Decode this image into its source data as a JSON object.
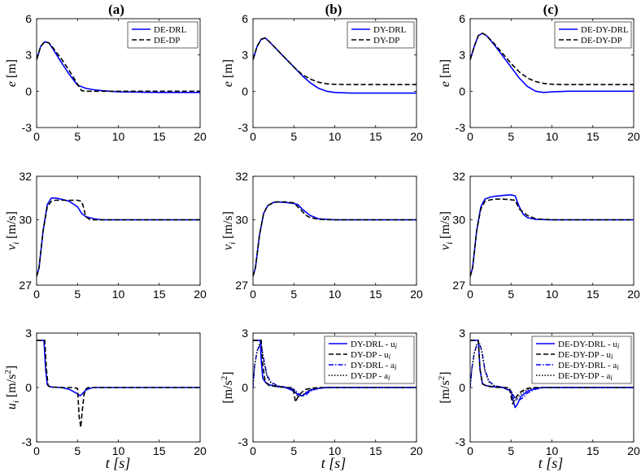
{
  "panel_titles": [
    "(a)",
    "(b)",
    "(c)"
  ],
  "x_label": "t [s]",
  "colors": {
    "drl": "#0000ff",
    "dp": "#000000"
  },
  "chart_data": [
    {
      "type": "line",
      "panel": "(a)",
      "row": "e",
      "ylabel": "e [m]",
      "xlim": [
        0,
        20
      ],
      "ylim": [
        -3,
        6
      ],
      "xticks": [
        0,
        5,
        10,
        15,
        20
      ],
      "yticks": [
        -3,
        0,
        3,
        6
      ],
      "legend": "top-right",
      "series": [
        {
          "name": "DE-DRL",
          "style": "drl",
          "x": [
            0,
            0.5,
            1,
            1.5,
            2,
            3,
            4,
            5,
            6,
            7,
            8,
            10,
            15,
            20
          ],
          "y": [
            2.6,
            3.7,
            4.1,
            4.0,
            3.5,
            2.4,
            1.4,
            0.5,
            0.25,
            0.12,
            0.05,
            -0.05,
            -0.1,
            -0.1
          ]
        },
        {
          "name": "DE-DP",
          "style": "dp",
          "x": [
            0,
            0.5,
            1,
            1.5,
            2,
            3,
            4,
            5,
            5.5,
            6,
            8,
            10,
            15,
            20
          ],
          "y": [
            2.6,
            3.7,
            4.1,
            4.0,
            3.6,
            2.7,
            1.7,
            0.6,
            0.05,
            0.0,
            0.0,
            0.0,
            0.0,
            0.0
          ]
        }
      ]
    },
    {
      "type": "line",
      "panel": "(b)",
      "row": "e",
      "ylabel": "e [m]",
      "xlim": [
        0,
        20
      ],
      "ylim": [
        -3,
        6
      ],
      "xticks": [
        0,
        5,
        10,
        15,
        20
      ],
      "yticks": [
        -3,
        0,
        3,
        6
      ],
      "legend": "top-right",
      "series": [
        {
          "name": "DY-DRL",
          "style": "drl",
          "x": [
            0,
            0.5,
            1,
            1.5,
            2,
            3,
            4,
            5,
            6,
            7,
            8,
            9,
            10,
            12,
            15,
            20
          ],
          "y": [
            2.6,
            3.7,
            4.3,
            4.4,
            4.1,
            3.4,
            2.7,
            2.0,
            1.3,
            0.7,
            0.25,
            0.0,
            -0.1,
            -0.15,
            -0.15,
            -0.15
          ]
        },
        {
          "name": "DY-DP",
          "style": "dp",
          "x": [
            0,
            0.5,
            1,
            1.5,
            2,
            3,
            4,
            5,
            6,
            7,
            8,
            9,
            10,
            12,
            15,
            20
          ],
          "y": [
            2.6,
            3.7,
            4.3,
            4.4,
            4.1,
            3.4,
            2.7,
            2.0,
            1.4,
            1.0,
            0.75,
            0.62,
            0.57,
            0.55,
            0.55,
            0.55
          ]
        }
      ]
    },
    {
      "type": "line",
      "panel": "(c)",
      "row": "e",
      "ylabel": "e [m]",
      "xlim": [
        0,
        20
      ],
      "ylim": [
        -3,
        6
      ],
      "xticks": [
        0,
        5,
        10,
        15,
        20
      ],
      "yticks": [
        -3,
        0,
        3,
        6
      ],
      "legend": "top-right",
      "series": [
        {
          "name": "DE-DY-DRL",
          "style": "drl",
          "x": [
            0,
            0.5,
            1,
            1.5,
            2,
            3,
            4,
            5,
            6,
            7,
            8,
            9,
            10,
            12,
            15,
            20
          ],
          "y": [
            2.6,
            3.7,
            4.6,
            4.8,
            4.6,
            3.8,
            2.9,
            2.0,
            1.1,
            0.4,
            0.0,
            -0.1,
            -0.05,
            0.0,
            0.0,
            0.0
          ]
        },
        {
          "name": "DE-DY-DP",
          "style": "dp",
          "x": [
            0,
            0.5,
            1,
            1.5,
            2,
            3,
            4,
            5,
            6,
            7,
            8,
            9,
            10,
            12,
            15,
            20
          ],
          "y": [
            2.6,
            3.7,
            4.6,
            4.8,
            4.6,
            3.9,
            3.1,
            2.3,
            1.6,
            1.1,
            0.8,
            0.65,
            0.58,
            0.55,
            0.55,
            0.55
          ]
        }
      ]
    },
    {
      "type": "line",
      "panel": "(a)",
      "row": "v",
      "ylabel": "v_i [m/s]",
      "xlim": [
        0,
        20
      ],
      "ylim": [
        27,
        32
      ],
      "xticks": [
        0,
        5,
        10,
        15,
        20
      ],
      "yticks": [
        27,
        30,
        32
      ],
      "series": [
        {
          "name": "DE-DRL",
          "style": "drl",
          "x": [
            0,
            0.3,
            0.8,
            1.3,
            1.8,
            2.3,
            3,
            4,
            5,
            5.5,
            6,
            7,
            8,
            10,
            15,
            20
          ],
          "y": [
            27.4,
            27.8,
            29.5,
            30.7,
            31.0,
            31.0,
            30.95,
            30.85,
            30.6,
            30.3,
            30.15,
            30.05,
            30.0,
            30.0,
            30.0,
            30.0
          ]
        },
        {
          "name": "DE-DP",
          "style": "dp",
          "x": [
            0,
            0.3,
            0.8,
            1.3,
            1.8,
            2.3,
            3,
            4,
            5,
            5.5,
            5.8,
            6,
            6.5,
            7,
            8,
            10,
            15,
            20
          ],
          "y": [
            27.4,
            27.8,
            29.5,
            30.6,
            30.85,
            30.9,
            30.9,
            30.9,
            30.9,
            30.85,
            30.5,
            30.15,
            30.02,
            30.0,
            30.0,
            30.0,
            30.0,
            30.0
          ]
        }
      ]
    },
    {
      "type": "line",
      "panel": "(b)",
      "row": "v",
      "ylabel": "v_i [m/s]",
      "xlim": [
        0,
        20
      ],
      "ylim": [
        27,
        32
      ],
      "xticks": [
        0,
        5,
        10,
        15,
        20
      ],
      "yticks": [
        27,
        30,
        32
      ],
      "series": [
        {
          "name": "DY-DRL",
          "style": "drl",
          "x": [
            0,
            0.3,
            0.8,
            1.3,
            1.8,
            2.5,
            3,
            4,
            5,
            5.5,
            6,
            7,
            8,
            10,
            15,
            20
          ],
          "y": [
            27.4,
            27.8,
            29.3,
            30.3,
            30.65,
            30.8,
            30.82,
            30.8,
            30.75,
            30.7,
            30.5,
            30.2,
            30.05,
            30.0,
            30.0,
            30.0
          ]
        },
        {
          "name": "DY-DP",
          "style": "dp",
          "x": [
            0,
            0.3,
            0.8,
            1.3,
            1.8,
            2.5,
            3,
            4,
            5,
            6,
            6.5,
            7,
            8,
            10,
            15,
            20
          ],
          "y": [
            27.4,
            27.8,
            29.3,
            30.3,
            30.65,
            30.8,
            30.82,
            30.82,
            30.78,
            30.4,
            30.2,
            30.1,
            30.02,
            30.0,
            30.0,
            30.0
          ]
        }
      ]
    },
    {
      "type": "line",
      "panel": "(c)",
      "row": "v",
      "ylabel": "v_i [m/s]",
      "xlim": [
        0,
        20
      ],
      "ylim": [
        27,
        32
      ],
      "xticks": [
        0,
        5,
        10,
        15,
        20
      ],
      "yticks": [
        27,
        30,
        32
      ],
      "series": [
        {
          "name": "DE-DY-DRL",
          "style": "drl",
          "x": [
            0,
            0.3,
            0.8,
            1.3,
            1.8,
            2.5,
            3,
            4,
            5,
            5.5,
            6,
            6.5,
            7,
            8,
            10,
            15,
            20
          ],
          "y": [
            27.4,
            27.8,
            29.5,
            30.6,
            30.95,
            31.05,
            31.08,
            31.12,
            31.15,
            31.1,
            30.6,
            30.25,
            30.1,
            30.02,
            30.0,
            30.0,
            30.0
          ]
        },
        {
          "name": "DE-DY-DP",
          "style": "dp",
          "x": [
            0,
            0.3,
            0.8,
            1.3,
            1.8,
            2.5,
            3,
            4,
            5,
            5.5,
            6,
            7,
            8,
            10,
            15,
            20
          ],
          "y": [
            27.4,
            27.8,
            29.5,
            30.5,
            30.85,
            30.92,
            30.95,
            30.95,
            30.92,
            30.9,
            30.5,
            30.2,
            30.05,
            30.0,
            30.0,
            30.0
          ]
        }
      ]
    },
    {
      "type": "line",
      "panel": "(a)",
      "row": "u",
      "ylabel": "u_i [m/s^2]",
      "xlim": [
        0,
        20
      ],
      "ylim": [
        -3,
        3
      ],
      "xticks": [
        0,
        5,
        10,
        15,
        20
      ],
      "yticks": [
        -3,
        0,
        3
      ],
      "series": [
        {
          "name": "DE-DRL",
          "style": "drl",
          "x": [
            0,
            0.9,
            1.1,
            1.3,
            1.6,
            2,
            3,
            4,
            5,
            5.3,
            5.6,
            6,
            6.5,
            7,
            8,
            10,
            15,
            20
          ],
          "y": [
            2.6,
            2.6,
            1.0,
            0.15,
            0.05,
            0.02,
            0.0,
            -0.1,
            -0.35,
            -0.45,
            -0.35,
            -0.15,
            -0.05,
            0.0,
            0.0,
            0.0,
            0.0,
            0.0
          ]
        },
        {
          "name": "DE-DP",
          "style": "dp",
          "x": [
            0,
            1.0,
            1.2,
            1.4,
            1.6,
            2,
            3,
            4,
            4.5,
            5,
            5.2,
            5.4,
            5.6,
            5.8,
            6,
            6.3,
            7,
            8,
            10,
            15,
            20
          ],
          "y": [
            2.6,
            2.6,
            1.0,
            0.1,
            0.05,
            0.02,
            0.0,
            0.0,
            0.0,
            -0.05,
            -1.6,
            -2.2,
            -1.2,
            -0.4,
            -0.1,
            0.0,
            0.0,
            0.0,
            0.0,
            0.0,
            0.0
          ]
        }
      ]
    },
    {
      "type": "line",
      "panel": "(b)",
      "row": "u",
      "ylabel": "[m/s^2]",
      "xlim": [
        0,
        20
      ],
      "ylim": [
        -3,
        3
      ],
      "xticks": [
        0,
        5,
        10,
        15,
        20
      ],
      "yticks": [
        -3,
        0,
        3
      ],
      "legend": "top-right",
      "series": [
        {
          "name": "DY-DRL - u_i",
          "style": "drl",
          "x": [
            0,
            0.9,
            1.0,
            1.2,
            1.5,
            2,
            3,
            4,
            5,
            5.5,
            6,
            6.5,
            7,
            8,
            9,
            10,
            15,
            20
          ],
          "y": [
            2.6,
            2.6,
            1.5,
            0.5,
            0.3,
            0.15,
            0.05,
            0.0,
            -0.2,
            -0.4,
            -0.45,
            -0.3,
            -0.15,
            -0.05,
            0.0,
            0.0,
            0.0,
            0.0
          ]
        },
        {
          "name": "DY-DP - u_i",
          "style": "dp",
          "x": [
            0,
            1.0,
            1.2,
            1.5,
            2,
            3,
            4,
            4.8,
            5.0,
            5.2,
            5.5,
            6,
            6.5,
            7,
            8,
            9,
            10,
            15,
            20
          ],
          "y": [
            2.6,
            2.6,
            1.2,
            0.3,
            0.1,
            0.05,
            0.0,
            0.0,
            -0.3,
            -0.8,
            -0.5,
            -0.25,
            -0.1,
            -0.05,
            0.0,
            0.0,
            0.0,
            0.0,
            0.0
          ]
        },
        {
          "name": "DY-DRL - a_i",
          "style": "drl-dashdot",
          "x": [
            0,
            0.2,
            0.5,
            0.8,
            1.0,
            1.3,
            1.7,
            2.2,
            3,
            4,
            5,
            5.5,
            6,
            6.5,
            7,
            8,
            9,
            10,
            15,
            20
          ],
          "y": [
            0.0,
            1.2,
            2.0,
            2.3,
            2.3,
            1.6,
            0.7,
            0.3,
            0.1,
            0.02,
            -0.1,
            -0.3,
            -0.5,
            -0.4,
            -0.2,
            -0.05,
            0.0,
            0.0,
            0.0,
            0.0
          ]
        },
        {
          "name": "DY-DP - a_i",
          "style": "dp-dotted",
          "x": [
            0,
            0.2,
            0.5,
            0.8,
            1.0,
            1.3,
            1.7,
            2.2,
            3,
            4,
            5,
            5.5,
            6,
            6.5,
            7,
            8,
            9,
            10,
            15,
            20
          ],
          "y": [
            0.0,
            1.2,
            2.0,
            2.4,
            2.4,
            1.5,
            0.6,
            0.25,
            0.08,
            0.0,
            -0.1,
            -0.5,
            -0.45,
            -0.25,
            -0.1,
            -0.03,
            0.0,
            0.0,
            0.0,
            0.0
          ]
        }
      ]
    },
    {
      "type": "line",
      "panel": "(c)",
      "row": "u",
      "ylabel": "[m/s^2]",
      "xlim": [
        0,
        20
      ],
      "ylim": [
        -3,
        3
      ],
      "xticks": [
        0,
        5,
        10,
        15,
        20
      ],
      "yticks": [
        -3,
        0,
        3
      ],
      "legend": "top-right",
      "series": [
        {
          "name": "DE-DY-DRL - u_i",
          "style": "drl",
          "x": [
            0,
            1.0,
            1.2,
            1.5,
            2,
            3,
            4,
            5,
            5.3,
            5.5,
            5.8,
            6.2,
            7,
            8,
            9,
            10,
            15,
            20
          ],
          "y": [
            2.6,
            2.6,
            1.0,
            0.2,
            0.1,
            0.03,
            0.0,
            -0.2,
            -0.8,
            -1.1,
            -0.9,
            -0.5,
            -0.2,
            -0.05,
            0.0,
            0.0,
            0.0,
            0.0
          ]
        },
        {
          "name": "DE-DY-DP - u_i",
          "style": "dp",
          "x": [
            0,
            1.0,
            1.2,
            1.5,
            2,
            3,
            4,
            4.8,
            5.0,
            5.2,
            5.5,
            6,
            6.5,
            7,
            8,
            9,
            10,
            15,
            20
          ],
          "y": [
            2.6,
            2.6,
            1.0,
            0.2,
            0.08,
            0.02,
            0.0,
            0.0,
            -0.5,
            -0.9,
            -0.6,
            -0.3,
            -0.15,
            -0.05,
            0.0,
            0.0,
            0.0,
            0.0,
            0.0
          ]
        },
        {
          "name": "DE-DY-DRL - a_i",
          "style": "drl-dashdot",
          "x": [
            0,
            0.2,
            0.5,
            0.8,
            1.1,
            1.4,
            1.8,
            2.3,
            3,
            4,
            5,
            5.5,
            6,
            6.5,
            7,
            8,
            9,
            10,
            15,
            20
          ],
          "y": [
            0.0,
            1.0,
            1.9,
            2.3,
            2.4,
            2.1,
            1.0,
            0.35,
            0.1,
            0.02,
            -0.2,
            -0.6,
            -0.7,
            -0.55,
            -0.3,
            -0.1,
            0.0,
            0.0,
            0.0,
            0.0
          ]
        },
        {
          "name": "DE-DY-DP - a_i",
          "style": "dp-dotted",
          "x": [
            0,
            0.2,
            0.5,
            0.8,
            1.1,
            1.4,
            1.8,
            2.3,
            3,
            4,
            5,
            5.3,
            5.6,
            6,
            6.5,
            7,
            8,
            9,
            10,
            15,
            20
          ],
          "y": [
            0.0,
            1.0,
            1.9,
            2.4,
            2.5,
            2.0,
            0.9,
            0.3,
            0.08,
            0.0,
            -0.2,
            -0.6,
            -0.7,
            -0.45,
            -0.25,
            -0.1,
            -0.02,
            0.0,
            0.0,
            0.0,
            0.0
          ]
        }
      ]
    }
  ]
}
